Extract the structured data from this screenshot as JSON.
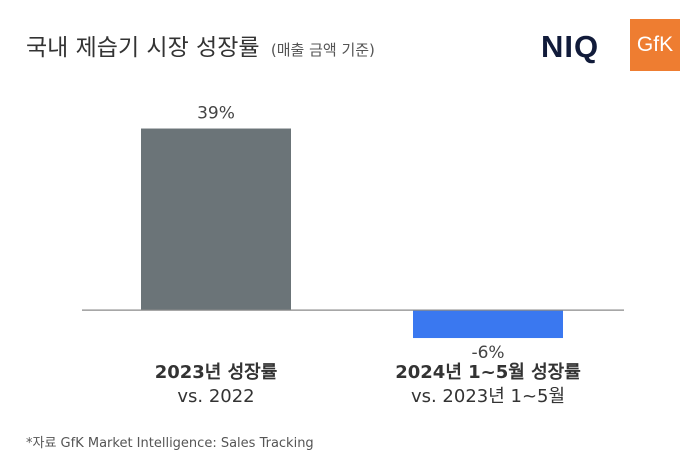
{
  "header": {
    "title": "국내 제습기 시장 성장률",
    "subtitle": "(매출 금액 기준)",
    "logo_niq": "NIQ",
    "logo_gfk": "GfK"
  },
  "chart_data": {
    "type": "bar",
    "categories": [
      {
        "line1": "2023년 성장률",
        "line2": "vs. 2022"
      },
      {
        "line1": "2024년 1~5월 성장률",
        "line2": "vs. 2023년 1~5월"
      }
    ],
    "values": [
      39,
      -6
    ],
    "data_labels": [
      "39%",
      "-6%"
    ],
    "colors": [
      "#6b7478",
      "#3a78f0"
    ],
    "ylim": [
      -9,
      52
    ],
    "grid": false
  },
  "footer": {
    "source": "*자료 GfK Market Intelligence: Sales Tracking"
  }
}
